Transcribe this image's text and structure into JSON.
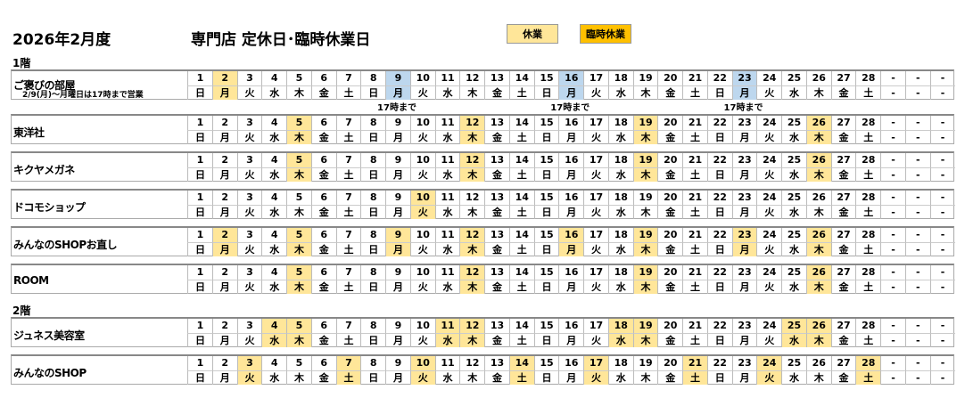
{
  "header": {
    "period": "2026年2月度",
    "title": "専門店 定休日･臨時休業日",
    "legend": [
      {
        "label": "休業",
        "color": "#FFE699"
      },
      {
        "label": "臨時休業",
        "color": "#FFC000"
      }
    ]
  },
  "colors": {
    "holiday": "#FFE699",
    "short_hours": "#BDD7EE"
  },
  "days": [
    "1",
    "2",
    "3",
    "4",
    "5",
    "6",
    "7",
    "8",
    "9",
    "10",
    "11",
    "12",
    "13",
    "14",
    "15",
    "16",
    "17",
    "18",
    "19",
    "20",
    "21",
    "22",
    "23",
    "24",
    "25",
    "26",
    "27",
    "28",
    "-",
    "-",
    "-"
  ],
  "weekdays": [
    "日",
    "月",
    "火",
    "水",
    "木",
    "金",
    "土",
    "日",
    "月",
    "火",
    "水",
    "木",
    "金",
    "土",
    "日",
    "月",
    "火",
    "水",
    "木",
    "金",
    "土",
    "日",
    "月",
    "火",
    "水",
    "木",
    "金",
    "土",
    "-",
    "-",
    "-"
  ],
  "floors": [
    {
      "label": "1階",
      "shops": [
        {
          "name": "ご褒びの部屋",
          "note": "2/9(月)～月曜日は17時まで営業",
          "holidays": [
            2
          ],
          "short_days": [
            9,
            16,
            23
          ],
          "short_label": "17時まで"
        },
        {
          "name": "東洋社",
          "holidays": [
            5,
            12,
            19,
            26
          ]
        },
        {
          "name": "キクヤメガネ",
          "holidays": [
            5,
            12,
            19,
            26
          ]
        },
        {
          "name": "ドコモショップ",
          "holidays": [
            10
          ]
        },
        {
          "name": "みんなのSHOPお直し",
          "holidays": [
            2,
            5,
            9,
            12,
            16,
            19,
            23,
            26
          ]
        },
        {
          "name": "ROOM",
          "holidays": [
            5,
            12,
            19,
            26
          ]
        }
      ]
    },
    {
      "label": "2階",
      "shops": [
        {
          "name": "ジュネス美容室",
          "holidays": [
            4,
            5,
            11,
            12,
            18,
            19,
            25,
            26
          ]
        },
        {
          "name": "みんなのSHOP",
          "holidays": [
            3,
            7,
            10,
            14,
            17,
            21,
            24,
            28
          ]
        }
      ]
    }
  ]
}
